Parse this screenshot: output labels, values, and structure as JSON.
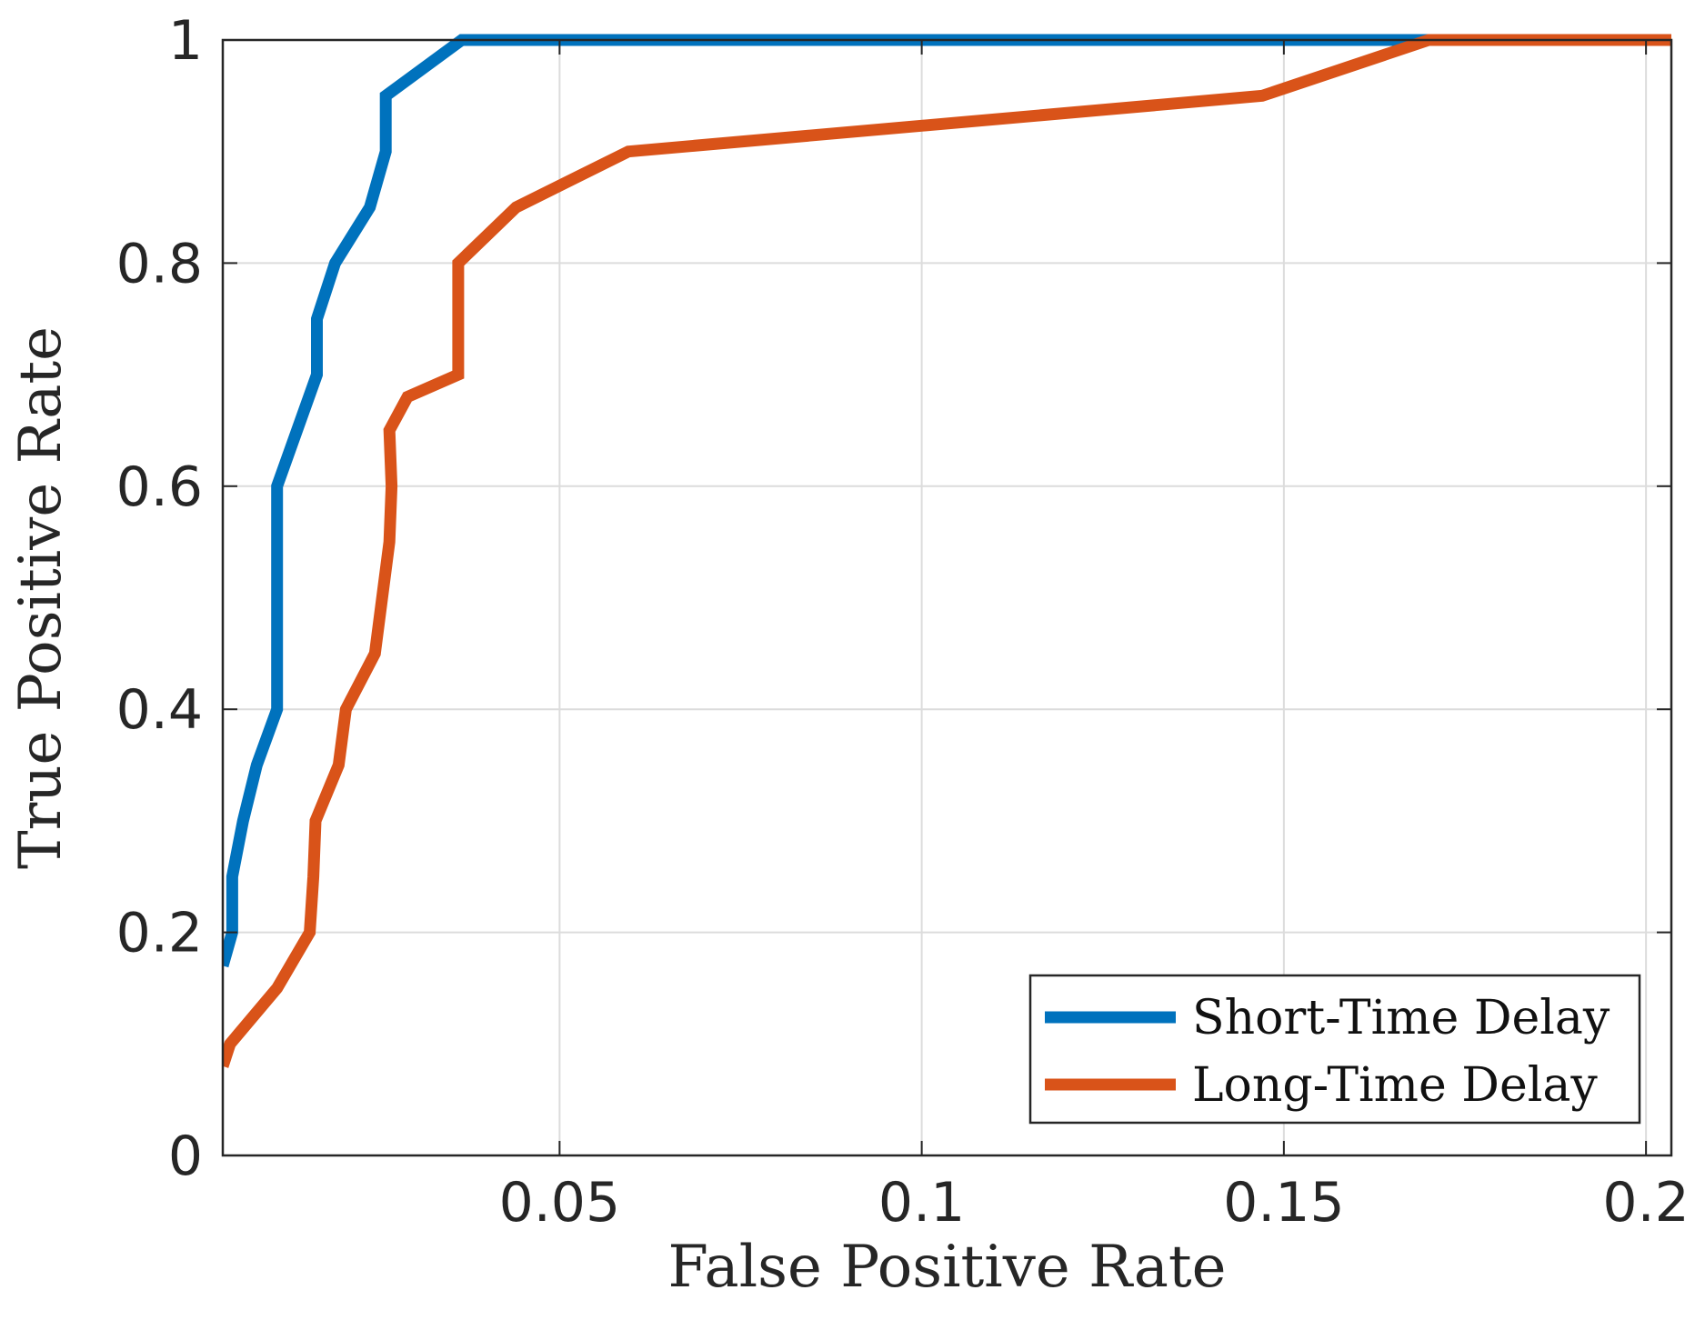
{
  "chart_data": {
    "type": "line",
    "title": "",
    "xlabel": "False Positive Rate",
    "ylabel": "True Positive Rate",
    "xlim": [
      0.0035,
      0.2035
    ],
    "ylim": [
      0,
      1
    ],
    "xticks": [
      0.05,
      0.1,
      0.15,
      0.2
    ],
    "xtick_labels": [
      "0.05",
      "0.1",
      "0.15",
      "0.2"
    ],
    "yticks": [
      0,
      0.2,
      0.4,
      0.6,
      0.8,
      1
    ],
    "ytick_labels": [
      "0",
      "0.2",
      "0.4",
      "0.6",
      "0.8",
      "1"
    ],
    "grid": true,
    "legend_position": "bottom-right",
    "series": [
      {
        "name": "Short-Time Delay",
        "color": "#0072BD",
        "x": [
          0.0035,
          0.0048,
          0.0048,
          0.0063,
          0.0082,
          0.011,
          0.011,
          0.0165,
          0.0165,
          0.019,
          0.0238,
          0.026,
          0.026,
          0.0365,
          0.17,
          0.2035
        ],
        "y": [
          0.17,
          0.2,
          0.25,
          0.3,
          0.35,
          0.4,
          0.6,
          0.7,
          0.75,
          0.8,
          0.85,
          0.9,
          0.95,
          1.0,
          1.0,
          1.0
        ]
      },
      {
        "name": "Long-Time Delay",
        "color": "#D95319",
        "x": [
          0.0035,
          0.0045,
          0.011,
          0.0155,
          0.016,
          0.0163,
          0.0195,
          0.0205,
          0.0245,
          0.0265,
          0.0268,
          0.0265,
          0.029,
          0.036,
          0.036,
          0.044,
          0.0595,
          0.147,
          0.17,
          0.2035
        ],
        "y": [
          0.08,
          0.1,
          0.15,
          0.2,
          0.25,
          0.3,
          0.35,
          0.4,
          0.45,
          0.55,
          0.6,
          0.65,
          0.68,
          0.7,
          0.8,
          0.85,
          0.9,
          0.95,
          1.0,
          1.0
        ]
      }
    ]
  }
}
